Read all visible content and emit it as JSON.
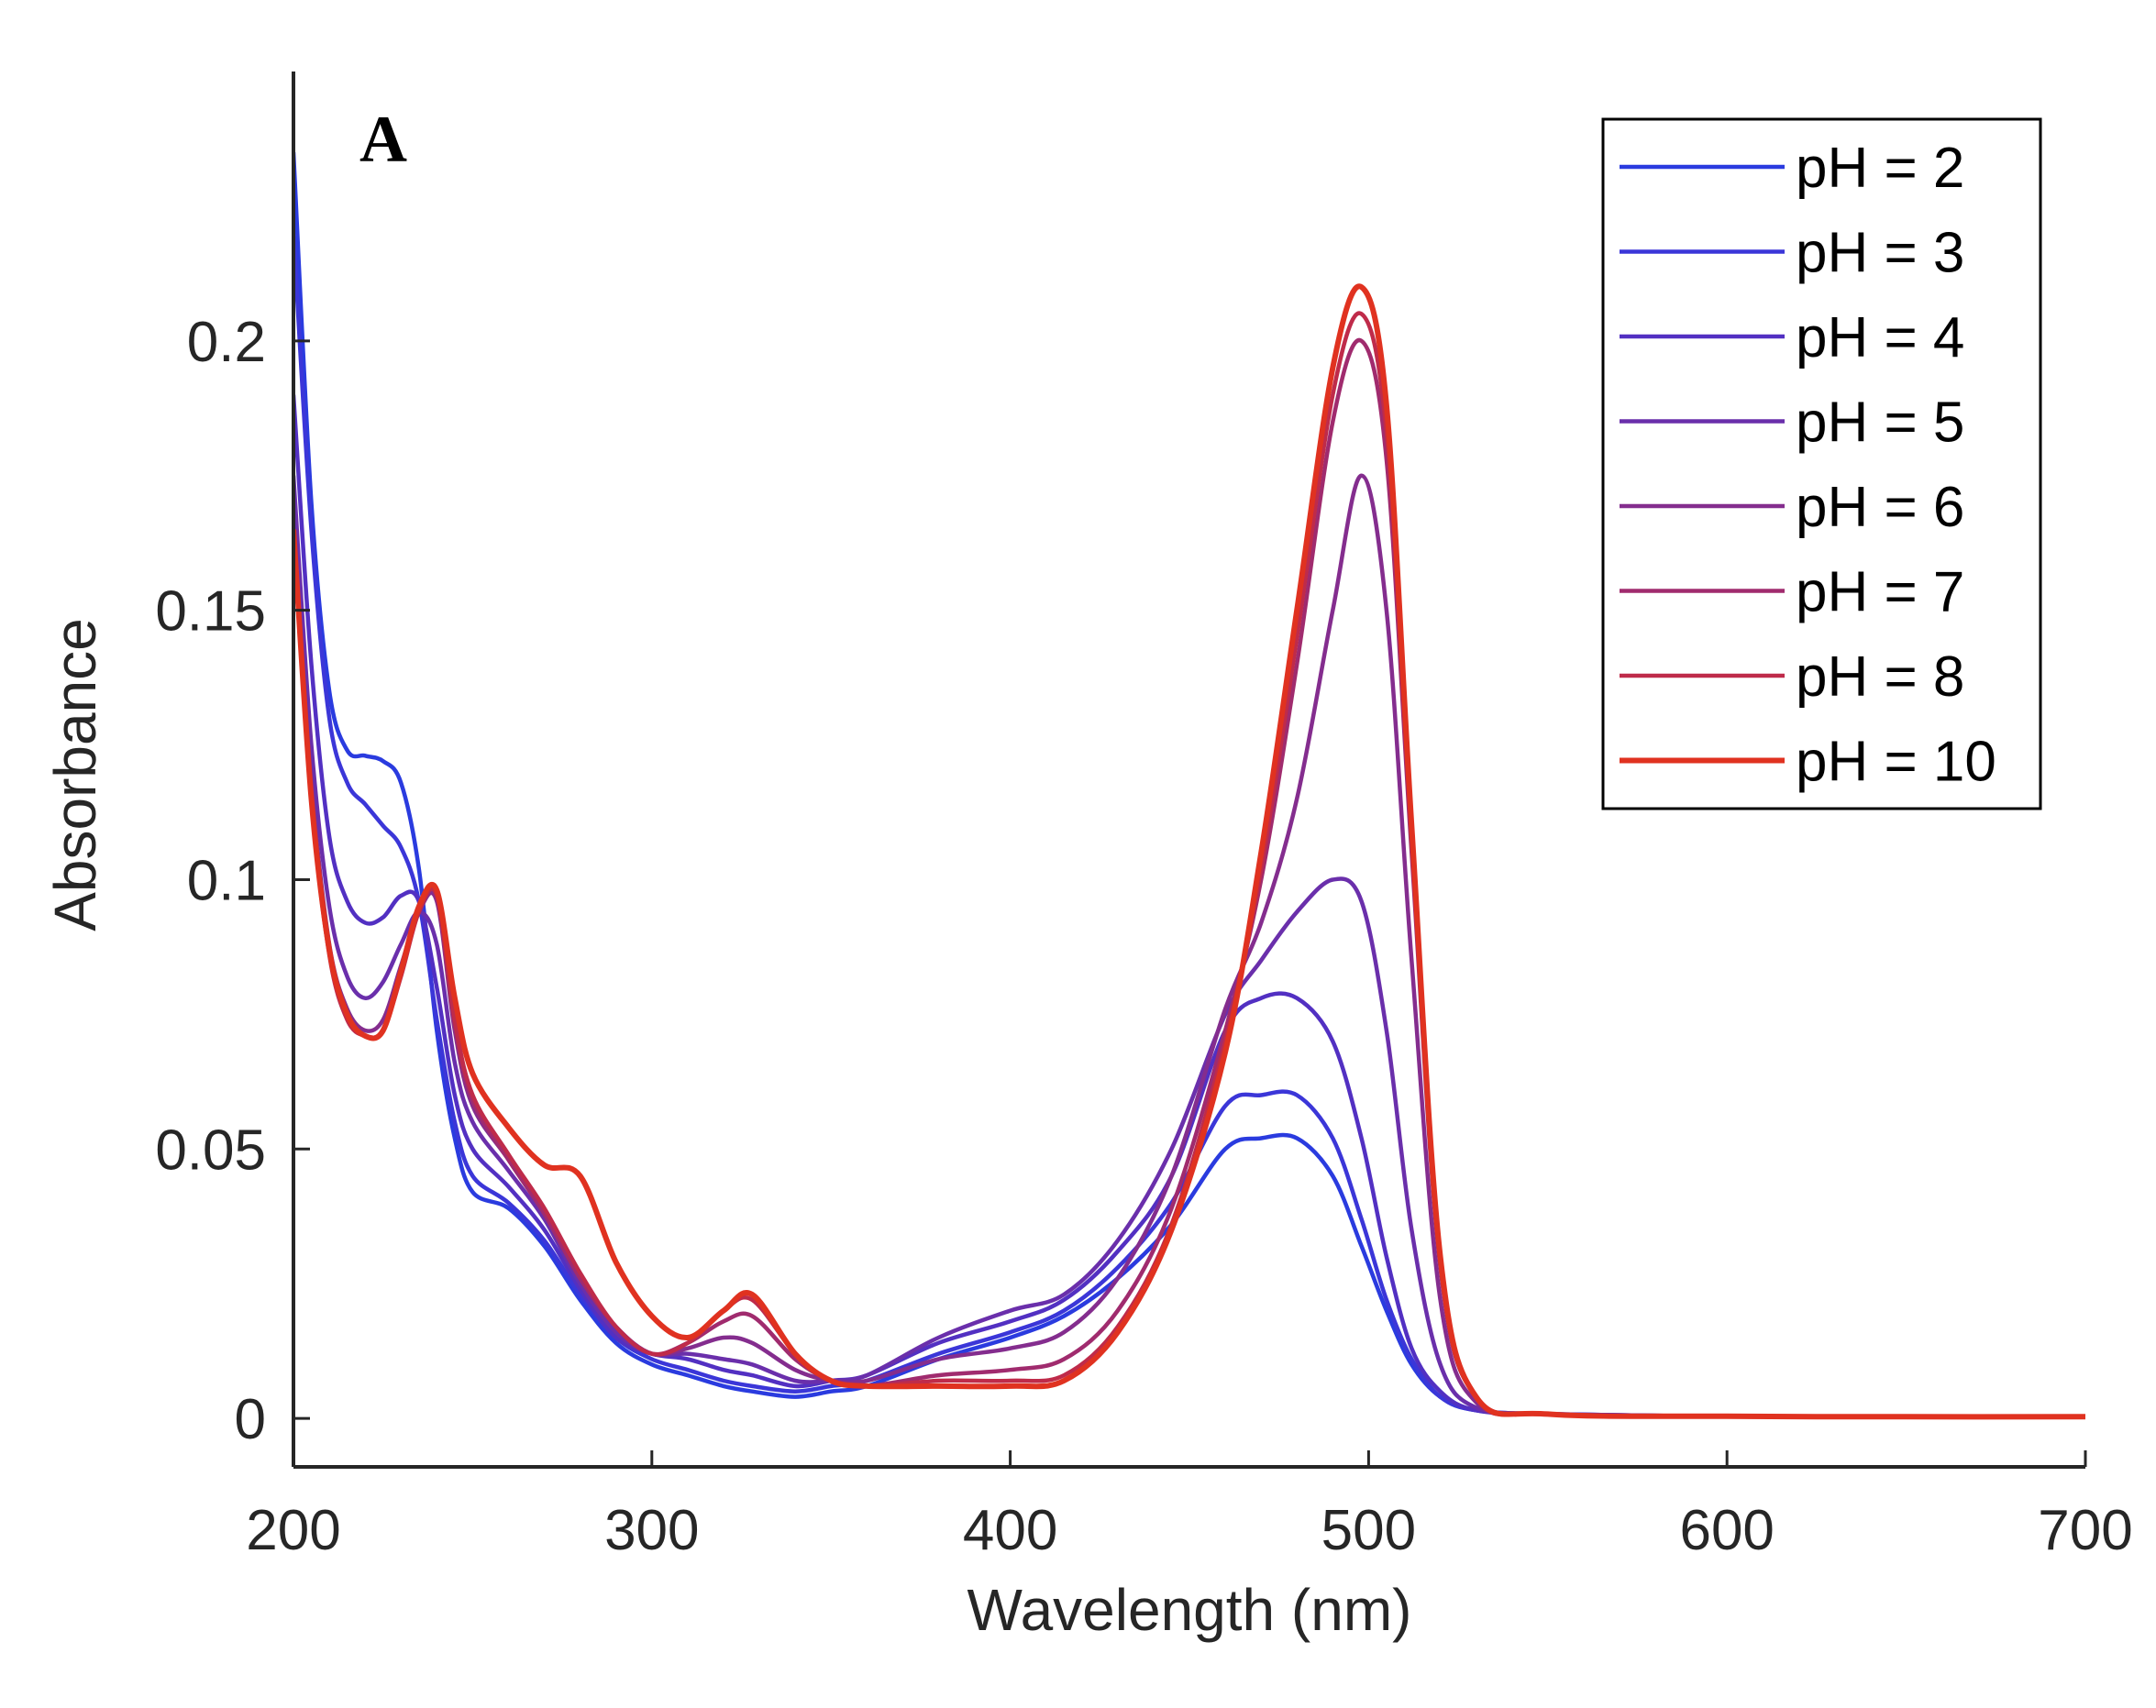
{
  "chart_data": {
    "type": "line",
    "panel_label": "A",
    "xlabel": "Wavelength (nm)",
    "ylabel": "Absorbance",
    "xlim": [
      200,
      700
    ],
    "ylim": [
      -0.009,
      0.25
    ],
    "xticks": [
      200,
      300,
      400,
      500,
      600,
      700
    ],
    "yticks": [
      0,
      0.05,
      0.1,
      0.15,
      0.2
    ],
    "xtick_labels": [
      "200",
      "300",
      "400",
      "500",
      "600",
      "700"
    ],
    "ytick_labels": [
      "0",
      "0.05",
      "0.1",
      "0.15",
      "0.2"
    ],
    "grid": false,
    "legend_position": "top-right",
    "x": [
      200,
      205,
      210,
      215,
      220,
      225,
      230,
      235,
      240,
      245,
      250,
      260,
      270,
      280,
      290,
      300,
      310,
      320,
      328,
      340,
      350,
      360,
      380,
      400,
      415,
      430,
      445,
      460,
      470,
      480,
      490,
      498,
      505,
      512,
      520,
      530,
      550,
      600,
      650,
      700
    ],
    "series": [
      {
        "name": "pH = 2",
        "color": "#2a3bdf",
        "values": [
          0.235,
          0.17,
          0.135,
          0.124,
          0.123,
          0.122,
          0.118,
          0.102,
          0.072,
          0.052,
          0.042,
          0.039,
          0.032,
          0.022,
          0.014,
          0.01,
          0.008,
          0.006,
          0.005,
          0.004,
          0.005,
          0.006,
          0.011,
          0.015,
          0.019,
          0.026,
          0.036,
          0.05,
          0.052,
          0.052,
          0.045,
          0.032,
          0.02,
          0.01,
          0.004,
          0.0015,
          0.0008,
          0.0004,
          0.0003,
          0.0003
        ]
      },
      {
        "name": "pH = 3",
        "color": "#3b36d8",
        "values": [
          0.22,
          0.165,
          0.13,
          0.118,
          0.114,
          0.11,
          0.106,
          0.096,
          0.074,
          0.055,
          0.045,
          0.04,
          0.033,
          0.023,
          0.015,
          0.011,
          0.009,
          0.007,
          0.006,
          0.005,
          0.006,
          0.007,
          0.012,
          0.016,
          0.02,
          0.028,
          0.04,
          0.058,
          0.06,
          0.06,
          0.052,
          0.037,
          0.022,
          0.011,
          0.004,
          0.0015,
          0.0008,
          0.0004,
          0.0003,
          0.0003
        ]
      },
      {
        "name": "pH = 4",
        "color": "#5230c2",
        "values": [
          0.19,
          0.14,
          0.108,
          0.096,
          0.092,
          0.093,
          0.097,
          0.096,
          0.08,
          0.06,
          0.05,
          0.043,
          0.035,
          0.024,
          0.015,
          0.012,
          0.011,
          0.009,
          0.008,
          0.006,
          0.007,
          0.008,
          0.014,
          0.018,
          0.022,
          0.031,
          0.045,
          0.072,
          0.078,
          0.078,
          0.07,
          0.052,
          0.03,
          0.013,
          0.005,
          0.0015,
          0.0008,
          0.0004,
          0.0003,
          0.0003
        ]
      },
      {
        "name": "pH = 5",
        "color": "#6a2fab",
        "values": [
          0.175,
          0.125,
          0.095,
          0.082,
          0.078,
          0.081,
          0.088,
          0.094,
          0.088,
          0.066,
          0.055,
          0.046,
          0.037,
          0.025,
          0.016,
          0.012,
          0.012,
          0.011,
          0.01,
          0.007,
          0.007,
          0.008,
          0.015,
          0.02,
          0.023,
          0.033,
          0.05,
          0.075,
          0.085,
          0.094,
          0.1,
          0.096,
          0.072,
          0.035,
          0.01,
          0.002,
          0.0008,
          0.0004,
          0.0003,
          0.0003
        ]
      },
      {
        "name": "pH = 6",
        "color": "#842d8e",
        "values": [
          0.165,
          0.118,
          0.088,
          0.076,
          0.072,
          0.074,
          0.084,
          0.094,
          0.096,
          0.072,
          0.058,
          0.048,
          0.038,
          0.026,
          0.017,
          0.012,
          0.013,
          0.015,
          0.014,
          0.009,
          0.007,
          0.007,
          0.011,
          0.013,
          0.016,
          0.026,
          0.045,
          0.076,
          0.092,
          0.115,
          0.15,
          0.175,
          0.15,
          0.085,
          0.022,
          0.003,
          0.0008,
          0.0004,
          0.0003,
          0.0003
        ]
      },
      {
        "name": "pH = 7",
        "color": "#a02b6e",
        "values": [
          0.165,
          0.116,
          0.087,
          0.075,
          0.071,
          0.072,
          0.083,
          0.094,
          0.097,
          0.073,
          0.059,
          0.048,
          0.038,
          0.026,
          0.017,
          0.012,
          0.014,
          0.018,
          0.019,
          0.011,
          0.007,
          0.006,
          0.008,
          0.009,
          0.011,
          0.02,
          0.039,
          0.072,
          0.1,
          0.14,
          0.185,
          0.2,
          0.178,
          0.105,
          0.028,
          0.004,
          0.0008,
          0.0004,
          0.0003,
          0.0003
        ]
      },
      {
        "name": "pH = 8",
        "color": "#bf2b4a",
        "values": [
          0.165,
          0.115,
          0.086,
          0.074,
          0.071,
          0.072,
          0.082,
          0.094,
          0.097,
          0.074,
          0.06,
          0.049,
          0.039,
          0.027,
          0.017,
          0.012,
          0.014,
          0.02,
          0.022,
          0.012,
          0.007,
          0.006,
          0.007,
          0.007,
          0.008,
          0.017,
          0.036,
          0.07,
          0.102,
          0.145,
          0.19,
          0.205,
          0.183,
          0.108,
          0.029,
          0.004,
          0.0008,
          0.0004,
          0.0003,
          0.0003
        ]
      },
      {
        "name": "pH = 10",
        "color": "#e03220",
        "values": [
          0.165,
          0.115,
          0.087,
          0.075,
          0.071,
          0.072,
          0.083,
          0.095,
          0.098,
          0.078,
          0.064,
          0.054,
          0.047,
          0.045,
          0.029,
          0.019,
          0.015,
          0.02,
          0.023,
          0.012,
          0.007,
          0.006,
          0.006,
          0.006,
          0.007,
          0.016,
          0.035,
          0.068,
          0.105,
          0.15,
          0.195,
          0.21,
          0.188,
          0.11,
          0.03,
          0.004,
          0.0008,
          0.0004,
          0.0003,
          0.0003
        ]
      }
    ]
  }
}
